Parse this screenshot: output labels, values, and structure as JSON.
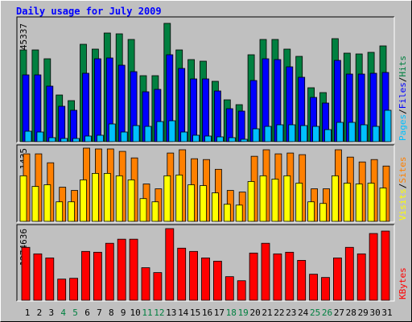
{
  "title": "Daily usage for July 2009",
  "legend_separator": "/",
  "chart_data": [
    {
      "type": "bar",
      "ylim": [
        0,
        45337
      ],
      "yticks": [
        45337
      ],
      "series": [
        {
          "name": "Hits",
          "color": "#008040",
          "values": [
            35158,
            35158,
            31765,
            17887,
            15728,
            37316,
            35466,
            41634,
            41326,
            39167,
            25289,
            25289,
            45337,
            35158,
            31457,
            30840,
            23130,
            16037,
            14186,
            33307,
            39167,
            39167,
            35466,
            32690,
            20663,
            18812,
            39475,
            33924,
            33616,
            34232,
            36700
          ]
        },
        {
          "name": "Files",
          "color": "#0000ff",
          "values": [
            25597,
            25597,
            21280,
            13570,
            12028,
            26214,
            31765,
            32074,
            29298,
            26831,
            19121,
            20046,
            33307,
            28064,
            24055,
            24055,
            19429,
            12644,
            11719,
            23438,
            31765,
            31457,
            28681,
            24672,
            16962,
            14803,
            31148,
            25906,
            25906,
            26214,
            26522
          ]
        },
        {
          "name": "Pages",
          "color": "#00c0ff",
          "values": [
            4009,
            3701,
            1542,
            1234,
            1234,
            2159,
            2467,
            6785,
            3701,
            6168,
            5860,
            7710,
            8018,
            3701,
            2467,
            2159,
            1850,
            1542,
            925,
            4934,
            5860,
            6476,
            6476,
            6168,
            5860,
            4626,
            7402,
            7402,
            6476,
            5860,
            12028
          ]
        }
      ]
    },
    {
      "type": "bar",
      "ylim": [
        0,
        1435
      ],
      "yticks": [
        1435
      ],
      "series": [
        {
          "name": "Sites",
          "color": "#ff8000",
          "values": [
            1323,
            1323,
            1148,
            669,
            606,
            1435,
            1419,
            1419,
            1371,
            1243,
            733,
            638,
            1339,
            1403,
            1227,
            1211,
            1020,
            606,
            574,
            1275,
            1403,
            1323,
            1339,
            1307,
            638,
            638,
            1403,
            1259,
            1164,
            1211,
            1084
          ]
        },
        {
          "name": "Visits",
          "color": "#ffff00",
          "values": [
            893,
            685,
            717,
            383,
            383,
            813,
            940,
            940,
            893,
            813,
            446,
            383,
            893,
            909,
            717,
            701,
            558,
            335,
            319,
            781,
            893,
            829,
            893,
            749,
            383,
            351,
            893,
            749,
            733,
            749,
            654
          ]
        }
      ]
    },
    {
      "type": "bar",
      "ylim": [
        0,
        1274636
      ],
      "yticks": [
        1274636
      ],
      "categories": [
        "1",
        "2",
        "3",
        "4",
        "5",
        "6",
        "7",
        "8",
        "9",
        "10",
        "11",
        "12",
        "13",
        "14",
        "15",
        "16",
        "17",
        "18",
        "19",
        "20",
        "21",
        "22",
        "23",
        "24",
        "25",
        "26",
        "27",
        "28",
        "29",
        "30",
        "31"
      ],
      "category_colors": [
        "#000000",
        "#000000",
        "#000000",
        "#008040",
        "#008040",
        "#000000",
        "#000000",
        "#000000",
        "#000000",
        "#000000",
        "#008040",
        "#008040",
        "#000000",
        "#000000",
        "#000000",
        "#000000",
        "#000000",
        "#008040",
        "#008040",
        "#000000",
        "#000000",
        "#000000",
        "#000000",
        "#000000",
        "#008040",
        "#008040",
        "#000000",
        "#000000",
        "#000000",
        "#000000",
        "#000000"
      ],
      "series": [
        {
          "name": "KBytes",
          "color": "#ff0000",
          "values": [
            941525,
            825645,
            753220,
            376610,
            391095,
            869100,
            854615,
            1013950,
            1086375,
            1086375,
            579400,
            492490,
            1274636,
            927040,
            869100,
            753220,
            695280,
            420065,
            347640,
            840130,
            1013950,
            825645,
            854615,
            709765,
            463520,
            405580,
            753220,
            941525,
            825645,
            1187770,
            1231225
          ]
        }
      ]
    }
  ]
}
